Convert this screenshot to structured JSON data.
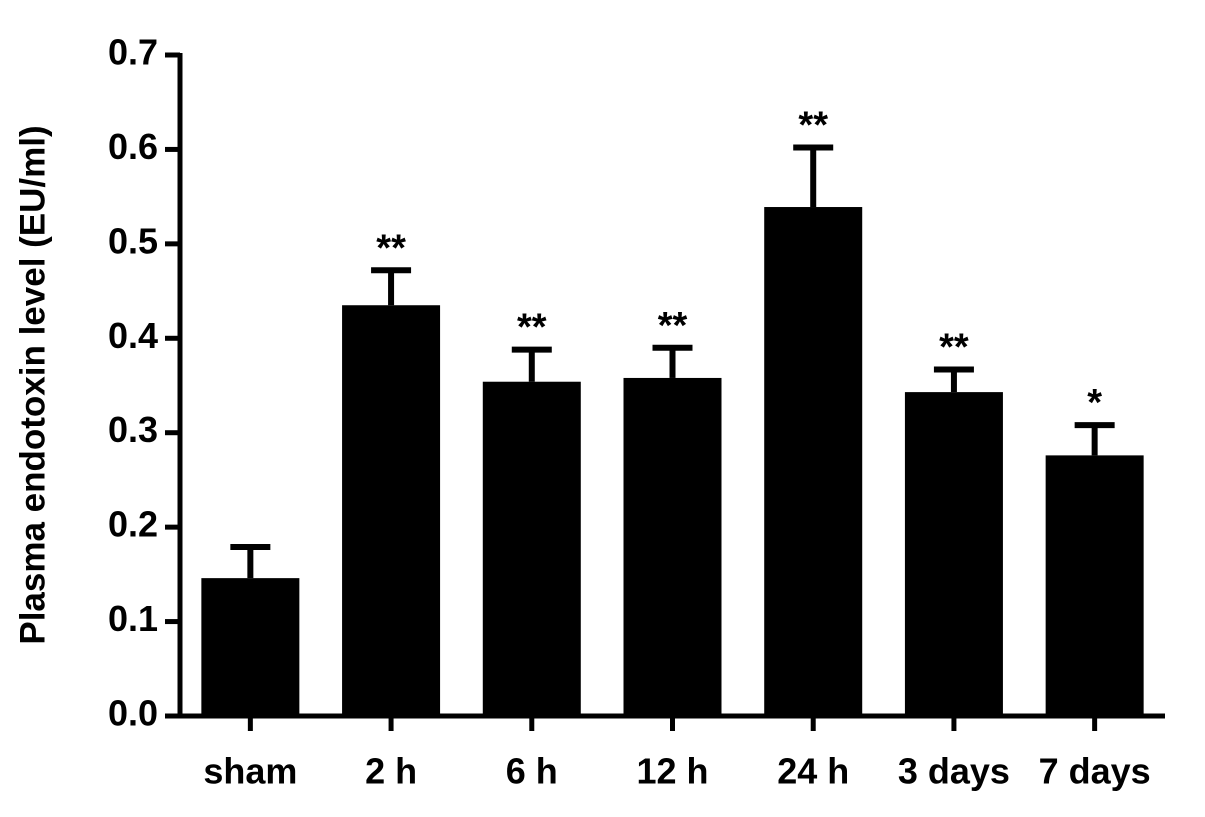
{
  "chart_data": {
    "type": "bar",
    "y_label": "Plasma endotoxin level (EU/ml)",
    "categories": [
      "sham",
      "2 h",
      "6 h",
      "12 h",
      "24 h",
      "3 days",
      "7 days"
    ],
    "values": [
      0.146,
      0.435,
      0.354,
      0.358,
      0.539,
      0.343,
      0.276
    ],
    "errors": [
      0.033,
      0.037,
      0.034,
      0.032,
      0.063,
      0.024,
      0.032
    ],
    "annotations": [
      null,
      "**",
      "**",
      "**",
      "**",
      "**",
      "*"
    ],
    "color": "#000000",
    "ylim": [
      0,
      0.7
    ],
    "yticks": [
      {
        "value": 0,
        "label": "0.0"
      },
      0.1,
      0.2,
      0.3,
      0.4,
      0.5,
      0.6,
      0.7
    ],
    "grid": false
  }
}
